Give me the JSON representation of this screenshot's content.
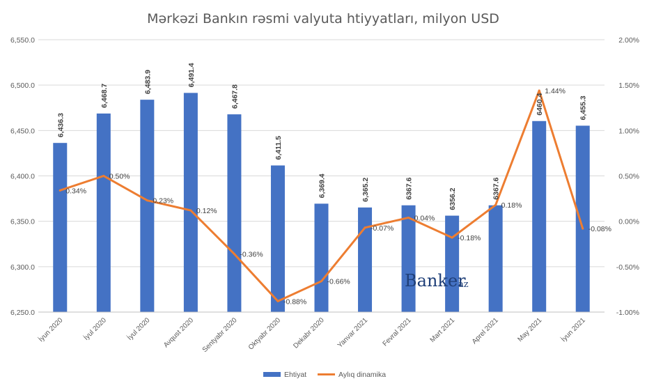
{
  "chart_data": {
    "type": "bar",
    "title": "Mərkəzi Bankın rəsmi valyuta htiyyatları, milyon USD",
    "categories": [
      "İyun 2020",
      "İyul 2020",
      "İyul 2020",
      "Avqust 2020",
      "Sentyabr 2020",
      "Oktyabr 2020",
      "Dekabr 2020",
      "Yanvar 2021",
      "Fevral 2021",
      "Mart 2021",
      "Aprel 2021",
      "May 2021",
      "İyun 2021"
    ],
    "series": [
      {
        "name": "Ehtiyat",
        "kind": "bar",
        "axis": "left",
        "color": "#4472c4",
        "values": [
          6436.3,
          6468.7,
          6483.9,
          6491.4,
          6467.8,
          6411.5,
          6369.4,
          6365.2,
          6367.6,
          6356.2,
          6367.6,
          6460.4,
          6455.3
        ],
        "labels": [
          "6,436.3",
          "6,468.7",
          "6,483.9",
          "6,491.4",
          "6,467.8",
          "6,411.5",
          "6,369.4",
          "6,365.2",
          "6367.6",
          "6356.2",
          "6367.6",
          "6460.4",
          "6,455.3"
        ]
      },
      {
        "name": "Aylıq dinamika",
        "kind": "line",
        "axis": "right",
        "color": "#ed7d31",
        "values": [
          0.34,
          0.5,
          0.23,
          0.12,
          -0.36,
          -0.88,
          -0.66,
          -0.07,
          0.04,
          -0.18,
          0.18,
          1.44,
          -0.08
        ],
        "labels": [
          "0.34%",
          "0.50%",
          "0.23%",
          "0.12%",
          "-0.36%",
          "-0.88%",
          "-0.66%",
          "-0.07%",
          "0.04%",
          "-0.18%",
          "0.18%",
          "1.44%",
          "-0.08%"
        ]
      }
    ],
    "y_left": {
      "min": 6250,
      "max": 6550,
      "ticks": [
        6250,
        6300,
        6350,
        6400,
        6450,
        6500,
        6550
      ],
      "tick_labels": [
        "6,250.0",
        "6,300.0",
        "6,350.0",
        "6,400.0",
        "6,450.0",
        "6,500.0",
        "6,550.0"
      ]
    },
    "y_right": {
      "min": -1.0,
      "max": 2.0,
      "ticks": [
        -1.0,
        -0.5,
        0.0,
        0.5,
        1.0,
        1.5,
        2.0
      ],
      "tick_labels": [
        "-1.00%",
        "-0.50%",
        "0.00%",
        "0.50%",
        "1.00%",
        "1.50%",
        "2.00%"
      ]
    },
    "grid": true,
    "legend_position": "bottom"
  },
  "watermark": {
    "main": "Banker",
    "sub": "az"
  }
}
